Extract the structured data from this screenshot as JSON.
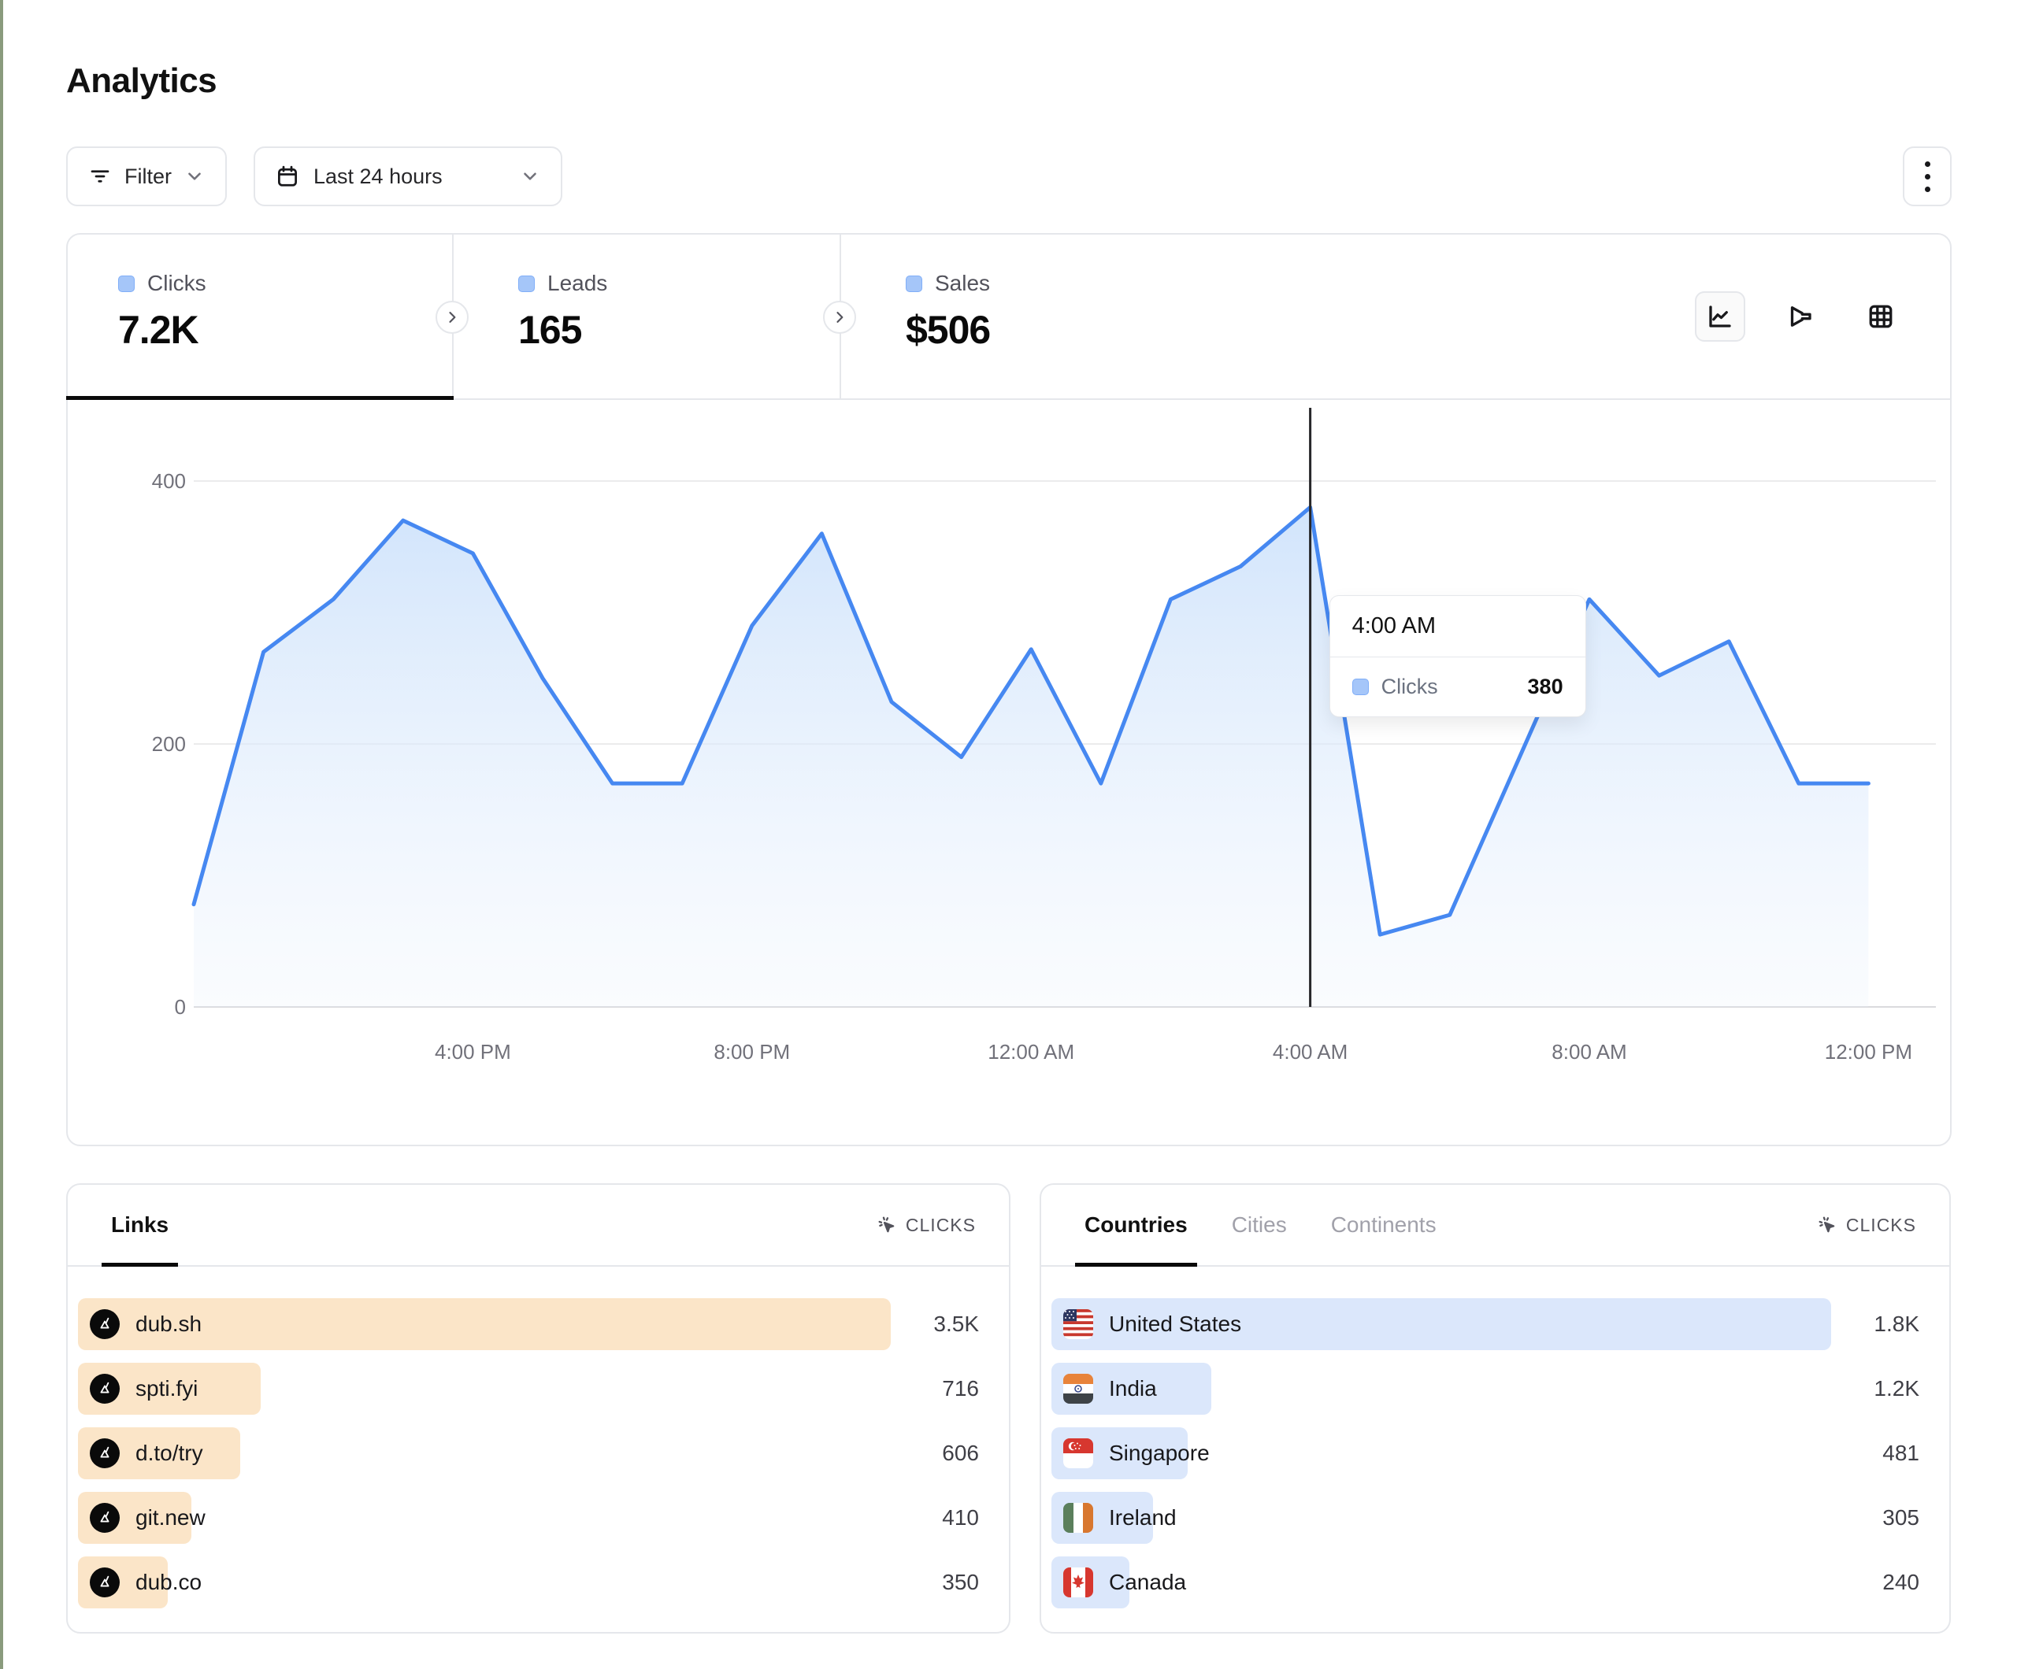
{
  "page": {
    "title": "Analytics"
  },
  "toolbar": {
    "filter_label": "Filter",
    "date_range_label": "Last 24 hours"
  },
  "stats": [
    {
      "label": "Clicks",
      "value": "7.2K",
      "active": true
    },
    {
      "label": "Leads",
      "value": "165",
      "active": false
    },
    {
      "label": "Sales",
      "value": "$506",
      "active": false
    }
  ],
  "chart_data": {
    "type": "area",
    "series": [
      {
        "name": "Clicks",
        "values": [
          78,
          270,
          310,
          370,
          345,
          250,
          170,
          170,
          290,
          360,
          232,
          190,
          272,
          170,
          310,
          335,
          380,
          55,
          70,
          190,
          310,
          252,
          278,
          170,
          170
        ]
      }
    ],
    "x_unit": "hour",
    "range_label": "Last 24 hours",
    "ylim": [
      0,
      400
    ],
    "yticks": [
      0,
      200,
      400
    ],
    "xticks": [
      {
        "index": 4,
        "label": "4:00 PM"
      },
      {
        "index": 8,
        "label": "8:00 PM"
      },
      {
        "index": 12,
        "label": "12:00 AM"
      },
      {
        "index": 16,
        "label": "4:00 AM"
      },
      {
        "index": 20,
        "label": "8:00 AM"
      },
      {
        "index": 24,
        "label": "12:00 PM"
      }
    ],
    "grid": true,
    "legend_position": "none",
    "line_color": "#4688f1",
    "area_top_color": "#dbeafe",
    "crosshair_index": 16,
    "tooltip": {
      "time": "4:00 AM",
      "series": "Clicks",
      "value": "380"
    }
  },
  "links_card": {
    "tab_label": "Links",
    "metric_label": "CLICKS",
    "rows": [
      {
        "label": "dub.sh",
        "value": "3.5K",
        "bar_pct": 100
      },
      {
        "label": "spti.fyi",
        "value": "716",
        "bar_pct": 22.5
      },
      {
        "label": "d.to/try",
        "value": "606",
        "bar_pct": 20
      },
      {
        "label": "git.new",
        "value": "410",
        "bar_pct": 14
      },
      {
        "label": "dub.co",
        "value": "350",
        "bar_pct": 11
      }
    ]
  },
  "geo_card": {
    "tabs": [
      {
        "label": "Countries",
        "active": true
      },
      {
        "label": "Cities",
        "active": false
      },
      {
        "label": "Continents",
        "active": false
      }
    ],
    "metric_label": "CLICKS",
    "rows": [
      {
        "label": "United States",
        "value": "1.8K",
        "bar_pct": 100,
        "flag": "us"
      },
      {
        "label": "India",
        "value": "1.2K",
        "bar_pct": 20.5,
        "flag": "in"
      },
      {
        "label": "Singapore",
        "value": "481",
        "bar_pct": 17.5,
        "flag": "sg"
      },
      {
        "label": "Ireland",
        "value": "305",
        "bar_pct": 13,
        "flag": "ie"
      },
      {
        "label": "Canada",
        "value": "240",
        "bar_pct": 10,
        "flag": "ca"
      }
    ]
  },
  "colors": {
    "accent_blue": "#4688f1",
    "bar_orange": "#fbe5c8",
    "bar_blue": "#dbe7fb",
    "legend_square": "#a5c6f9",
    "border": "#e5e7eb"
  }
}
